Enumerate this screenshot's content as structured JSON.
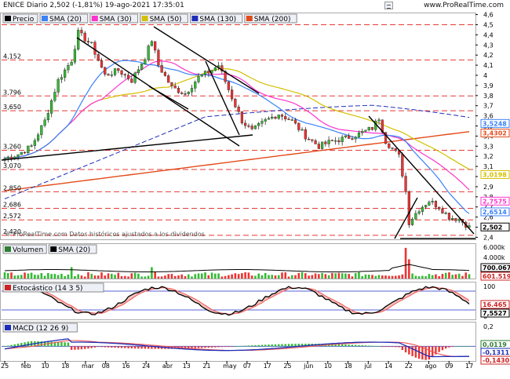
{
  "header": {
    "title": "ENICE Diario 2,502 (-1,81%) 19-ago-2021 17:35:01",
    "brand": "www.ProRealTime.com"
  },
  "price_panel": {
    "legend": [
      {
        "label": "Precio",
        "color": "#000000"
      },
      {
        "label": "SMA (20)",
        "color": "#3b82f6"
      },
      {
        "label": "SMA (30)",
        "color": "#ff33cc"
      },
      {
        "label": "SMA (50)",
        "color": "#d4c000"
      },
      {
        "label": "SMA (130)",
        "color": "#1e2db8"
      },
      {
        "label": "SMA (200)",
        "color": "#e14b1a"
      }
    ],
    "right_ticks": [
      "4,6",
      "4,5",
      "4,4",
      "4,3",
      "4,2",
      "4,1",
      "4",
      "3,9",
      "3,8",
      "3,7",
      "3,6",
      "3,5",
      "3,4",
      "3,3",
      "3,2",
      "3,1",
      "3",
      "2,9",
      "2,8",
      "2,7",
      "2,6",
      "2,5",
      "2,4"
    ],
    "left_levels": [
      "4,152",
      "3,796",
      "3,650",
      "3,260",
      "3,070",
      "2,850",
      "2,686",
      "2,572",
      "2,420"
    ],
    "right_tags": [
      {
        "value": "3,5248",
        "color": "#3b82f6"
      },
      {
        "value": "3,4302",
        "color": "#e14b1a"
      },
      {
        "value": "3,0198",
        "color": "#d4c000"
      },
      {
        "value": "2,7575",
        "color": "#ff33cc"
      },
      {
        "value": "2,6514",
        "color": "#3b82f6"
      },
      {
        "value": "2,502",
        "color": "#000000"
      }
    ],
    "watermark": "© ProRealTime.com Datos históricos ajustados a los dividendos"
  },
  "volume_panel": {
    "legend": [
      {
        "label": "Volumen",
        "color": "#2e7d32"
      },
      {
        "label": "SMA (20)",
        "color": "#000000"
      }
    ],
    "ticks": [
      "6.000k",
      "4.000k"
    ],
    "tags": [
      {
        "value": "700.067",
        "color": "#000000"
      },
      {
        "value": "601.519",
        "color": "#cc2222"
      }
    ]
  },
  "stochastic_panel": {
    "legend": [
      {
        "label": "Estocástico (14 3 5)",
        "color": "#000000"
      }
    ],
    "ticks": [
      "100",
      "0"
    ],
    "tags": [
      {
        "value": "16.465",
        "color": "#cc2222"
      },
      {
        "value": "7,5527",
        "color": "#000000"
      }
    ]
  },
  "macd_panel": {
    "legend": [
      {
        "label": "MACD (12 26 9)",
        "color": "#000000"
      }
    ],
    "ticks": [
      "0,2",
      "0"
    ],
    "tags": [
      {
        "value": "0,0119",
        "color": "#2e7d32"
      },
      {
        "value": "-0,1311",
        "color": "#1e2db8"
      },
      {
        "value": "-0,1430",
        "color": "#cc2222"
      }
    ]
  },
  "x_axis": {
    "labels": [
      "25",
      "feb",
      "10",
      "18",
      "mar",
      "08",
      "16",
      "24",
      "abr",
      "13",
      "21",
      "may",
      "07",
      "17",
      "25",
      "jun",
      "10",
      "18",
      "jul",
      "14",
      "22",
      "ago",
      "09",
      "17"
    ]
  }
}
